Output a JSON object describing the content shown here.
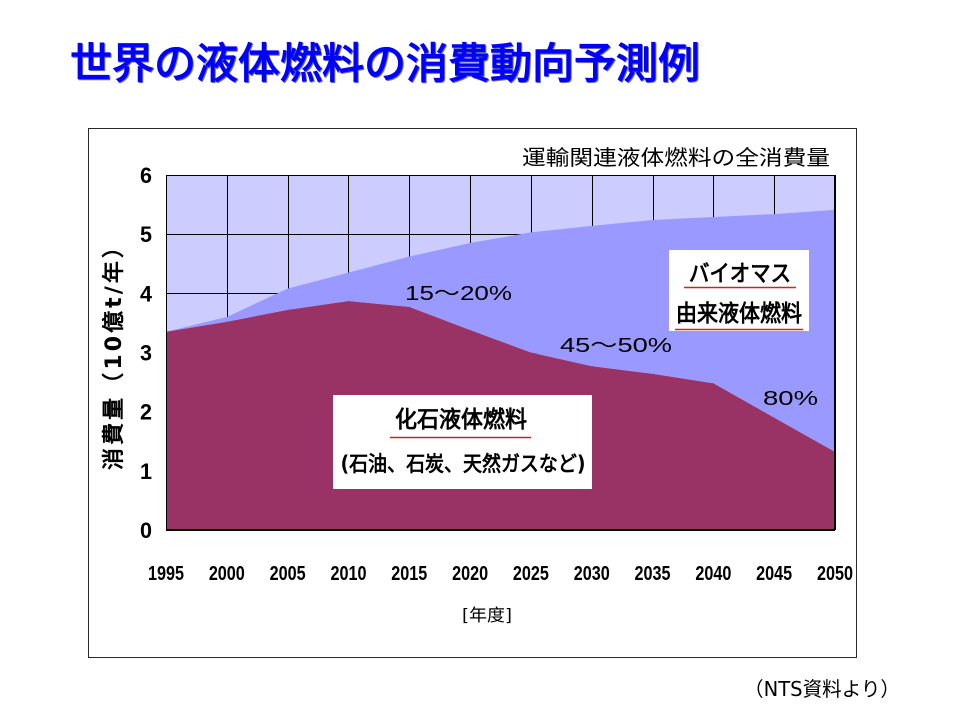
{
  "slide": {
    "title": "世界の液体燃料の消費動向予測例",
    "title_color": "#0000FF",
    "source_note": "（NTS資料より）"
  },
  "chart_data": {
    "type": "area",
    "stacked": true,
    "x": [
      1995,
      2000,
      2005,
      2010,
      2015,
      2020,
      2025,
      2030,
      2035,
      2040,
      2045,
      2050
    ],
    "xlim": [
      1995,
      2050
    ],
    "ylim": [
      0,
      6
    ],
    "yticks": [
      0,
      1,
      2,
      3,
      4,
      5,
      6
    ],
    "xlabel": "[年度]",
    "ylabel": "消費量（10億t/年）",
    "grid": true,
    "legend": "none",
    "colors": {
      "plot_background": "#CCCCFF",
      "gridline": "#000000"
    },
    "series": [
      {
        "name": "化石液体燃料",
        "note": "(石油、石炭、天然ガスなど)",
        "color": "#993366",
        "values": [
          3.35,
          3.52,
          3.72,
          3.87,
          3.77,
          3.38,
          3.0,
          2.77,
          2.64,
          2.48,
          1.9,
          1.32
        ]
      },
      {
        "name_lines": [
          "バイオマス",
          "由来液体燃料"
        ],
        "color": "#9999FF",
        "values": [
          0.0,
          0.08,
          0.36,
          0.48,
          0.85,
          1.47,
          2.03,
          2.37,
          2.6,
          2.81,
          3.44,
          4.09
        ]
      }
    ],
    "annotations": {
      "total_label": "運輸関連液体燃料の全消費量",
      "share_labels": [
        "15～20%",
        "45～50%",
        "80%"
      ]
    }
  }
}
